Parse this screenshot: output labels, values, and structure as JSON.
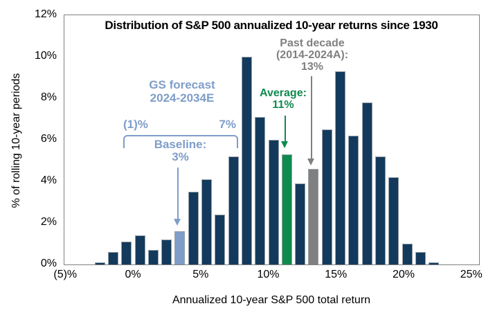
{
  "chart_data": {
    "type": "bar",
    "title": "Distribution of S&P 500 annualized 10-year returns since 1930",
    "xlabel": "Annualized 10-year S&P 500 total return",
    "ylabel": "% of rolling 10-year periods",
    "x": [
      -3,
      -2,
      -1,
      0,
      1,
      2,
      3,
      4,
      5,
      6,
      7,
      8,
      9,
      10,
      11,
      12,
      13,
      14,
      15,
      16,
      17,
      18,
      19,
      20,
      21,
      22
    ],
    "values": [
      0.1,
      0.6,
      1.1,
      1.4,
      0.7,
      1.2,
      1.6,
      3.5,
      4.1,
      2.4,
      5.2,
      10.0,
      7.1,
      6.0,
      5.3,
      3.9,
      4.6,
      6.5,
      9.3,
      6.2,
      7.8,
      5.2,
      4.2,
      1.0,
      0.6,
      0.1
    ],
    "highlights": {
      "3": "light_blue",
      "11": "green",
      "13": "gray"
    },
    "ylim": [
      0,
      12
    ],
    "x_range_shown": [
      -5.1,
      25.6
    ],
    "grid": false,
    "legend": false,
    "y_ticks": [
      {
        "value": 0,
        "label": "0%"
      },
      {
        "value": 2,
        "label": "2%"
      },
      {
        "value": 4,
        "label": "4%"
      },
      {
        "value": 6,
        "label": "6%"
      },
      {
        "value": 8,
        "label": "8%"
      },
      {
        "value": 10,
        "label": "10%"
      },
      {
        "value": 12,
        "label": "12%"
      }
    ],
    "x_ticks": [
      {
        "value": -5,
        "label": "(5)%"
      },
      {
        "value": 0,
        "label": "0%"
      },
      {
        "value": 5,
        "label": "5%"
      },
      {
        "value": 10,
        "label": "10%"
      },
      {
        "value": 15,
        "label": "15%"
      },
      {
        "value": 20,
        "label": "20%"
      },
      {
        "value": 25,
        "label": "25%"
      }
    ]
  },
  "annotations": {
    "gs_forecast": {
      "line1": "GS forecast",
      "line2": "2024-2034E"
    },
    "gs_range_low": "(1)%",
    "gs_range_high": "7%",
    "baseline": {
      "line1": "Baseline:",
      "line2": "3%"
    },
    "average": {
      "line1": "Average:",
      "line2": "11%"
    },
    "past_decade": {
      "line1": "Past decade",
      "line2": "(2014-2024A):",
      "line3": "13%"
    }
  },
  "colors": {
    "navy": "#133A5C",
    "light_blue": "#7E9DC9",
    "green": "#0E8A4E",
    "gray": "#808080",
    "axis_border": "#808080",
    "text": "#000000"
  }
}
